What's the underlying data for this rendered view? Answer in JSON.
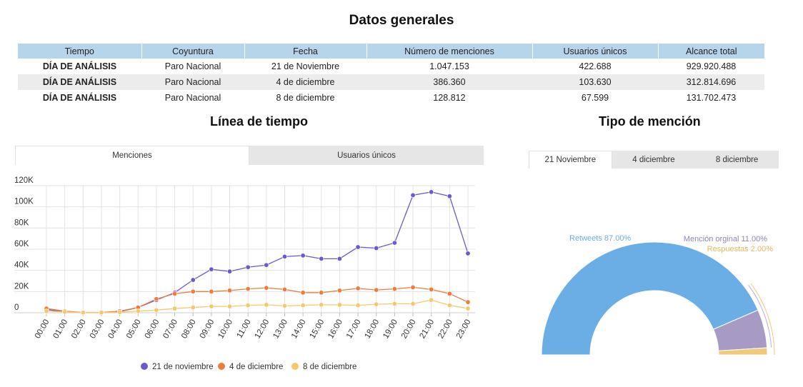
{
  "page": {
    "title": "Datos generales"
  },
  "summary": {
    "headers": [
      "Tiempo",
      "Coyuntura",
      "Fecha",
      "Número de menciones",
      "Usuarios únicos",
      "Alcance total"
    ],
    "rows": [
      [
        "DÍA DE ANÁLISIS",
        "Paro Nacional",
        "21 de Noviembre",
        "1.047.153",
        "422.688",
        "929.920.488"
      ],
      [
        "DÍA DE ANÁLISIS",
        "Paro Nacional",
        "4 de diciembre",
        "386.360",
        "103.630",
        "312.814.696"
      ],
      [
        "DÍA DE ANÁLISIS",
        "Paro Nacional",
        "8 de diciembre",
        "128.812",
        "67.599",
        "131.702.473"
      ]
    ]
  },
  "timeline": {
    "title": "Línea de tiempo",
    "tabs": [
      {
        "label": "Menciones",
        "active": true
      },
      {
        "label": "Usuarios únicos",
        "active": false
      }
    ]
  },
  "mention_type": {
    "title": "Tipo de mención",
    "tabs": [
      {
        "label": "21 Noviembre",
        "active": true
      },
      {
        "label": "4 diciembre",
        "active": false
      },
      {
        "label": "8 diciembre",
        "active": false
      }
    ]
  },
  "chart_data": [
    {
      "type": "line",
      "title": "",
      "xlabel": "",
      "ylabel": "",
      "x": [
        "00:00",
        "01:00",
        "02:00",
        "03:00",
        "04:00",
        "05:00",
        "06:00",
        "07:00",
        "08:00",
        "09:00",
        "10:00",
        "11:00",
        "12:00",
        "13:00",
        "14:00",
        "15:00",
        "16:00",
        "17:00",
        "18:00",
        "19:00",
        "20:00",
        "21:00",
        "22:00",
        "23:00"
      ],
      "ylim": [
        0,
        120000
      ],
      "yticks": [
        0,
        20000,
        40000,
        60000,
        80000,
        100000,
        120000
      ],
      "ytick_labels": [
        "0",
        "20K",
        "40K",
        "60K",
        "80K",
        "100K",
        "120K"
      ],
      "grid": true,
      "legend": "bottom",
      "series": [
        {
          "name": "21 de noviembre",
          "color": "#6a5acd",
          "values": [
            3000,
            1000,
            200,
            200,
            1000,
            5000,
            12000,
            19000,
            31000,
            41000,
            39000,
            43000,
            45000,
            53000,
            54000,
            51000,
            51000,
            62000,
            61000,
            66000,
            111000,
            114000,
            110000,
            56000
          ]
        },
        {
          "name": "4 de diciembre",
          "color": "#f07c3c",
          "values": [
            4000,
            1500,
            300,
            300,
            1500,
            5000,
            13000,
            18000,
            20000,
            20000,
            21000,
            22500,
            23500,
            22000,
            19000,
            19000,
            21000,
            23000,
            21500,
            22500,
            24000,
            22000,
            18000,
            10000
          ]
        },
        {
          "name": "8 de diciembre",
          "color": "#f5c86e",
          "values": [
            1500,
            800,
            200,
            200,
            500,
            1500,
            2500,
            4000,
            5000,
            6000,
            6000,
            7000,
            7500,
            6500,
            7000,
            7500,
            7500,
            7000,
            8000,
            8500,
            8500,
            12000,
            7000,
            4000
          ]
        }
      ]
    },
    {
      "type": "pie",
      "title": "",
      "shape": "half-donut",
      "categories": [
        "Retweets",
        "Mención orginal",
        "Respuestas"
      ],
      "values": [
        87.0,
        11.0,
        2.0
      ],
      "labels": [
        "Retweets 87.00%",
        "Mención orginal 11.00%",
        "Respuestas 2.00%"
      ],
      "colors": [
        "#6aaee5",
        "#a79bc6",
        "#f2c879"
      ],
      "legend": "none"
    }
  ]
}
